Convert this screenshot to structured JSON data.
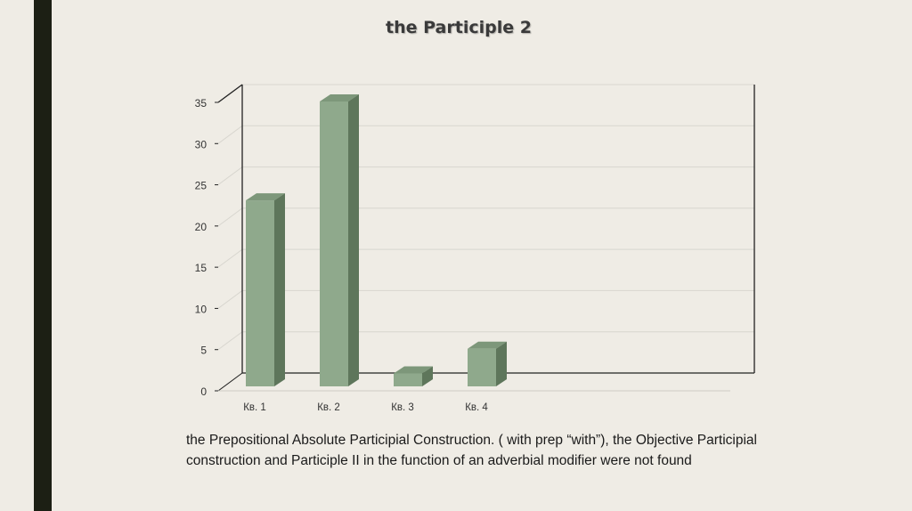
{
  "page": {
    "title": "the Participle 2",
    "caption": "the Prepositional Absolute Participial Construction. ( with prep “with”), the Objective Participial construction and Participle II in the function of an adverbial modifier were not found"
  },
  "chart_data": {
    "type": "bar",
    "style": "3d-column",
    "categories": [
      "Кв. 1",
      "Кв. 2",
      "Кв. 3",
      "Кв. 4"
    ],
    "values": [
      23,
      35,
      2,
      5
    ],
    "ylim": [
      0,
      35
    ],
    "yticks": [
      "0",
      "5",
      "10",
      "15",
      "20",
      "25",
      "30",
      "35"
    ],
    "grid": true,
    "legend": "none",
    "colors": {
      "bar_front": "#8fa98c",
      "bar_side": "#5e765b",
      "bar_top": "#7d977a",
      "axis": "#222222",
      "grid": "#d8d6cf",
      "accent_bar": "#1c1f14",
      "background": "#efece5"
    }
  }
}
